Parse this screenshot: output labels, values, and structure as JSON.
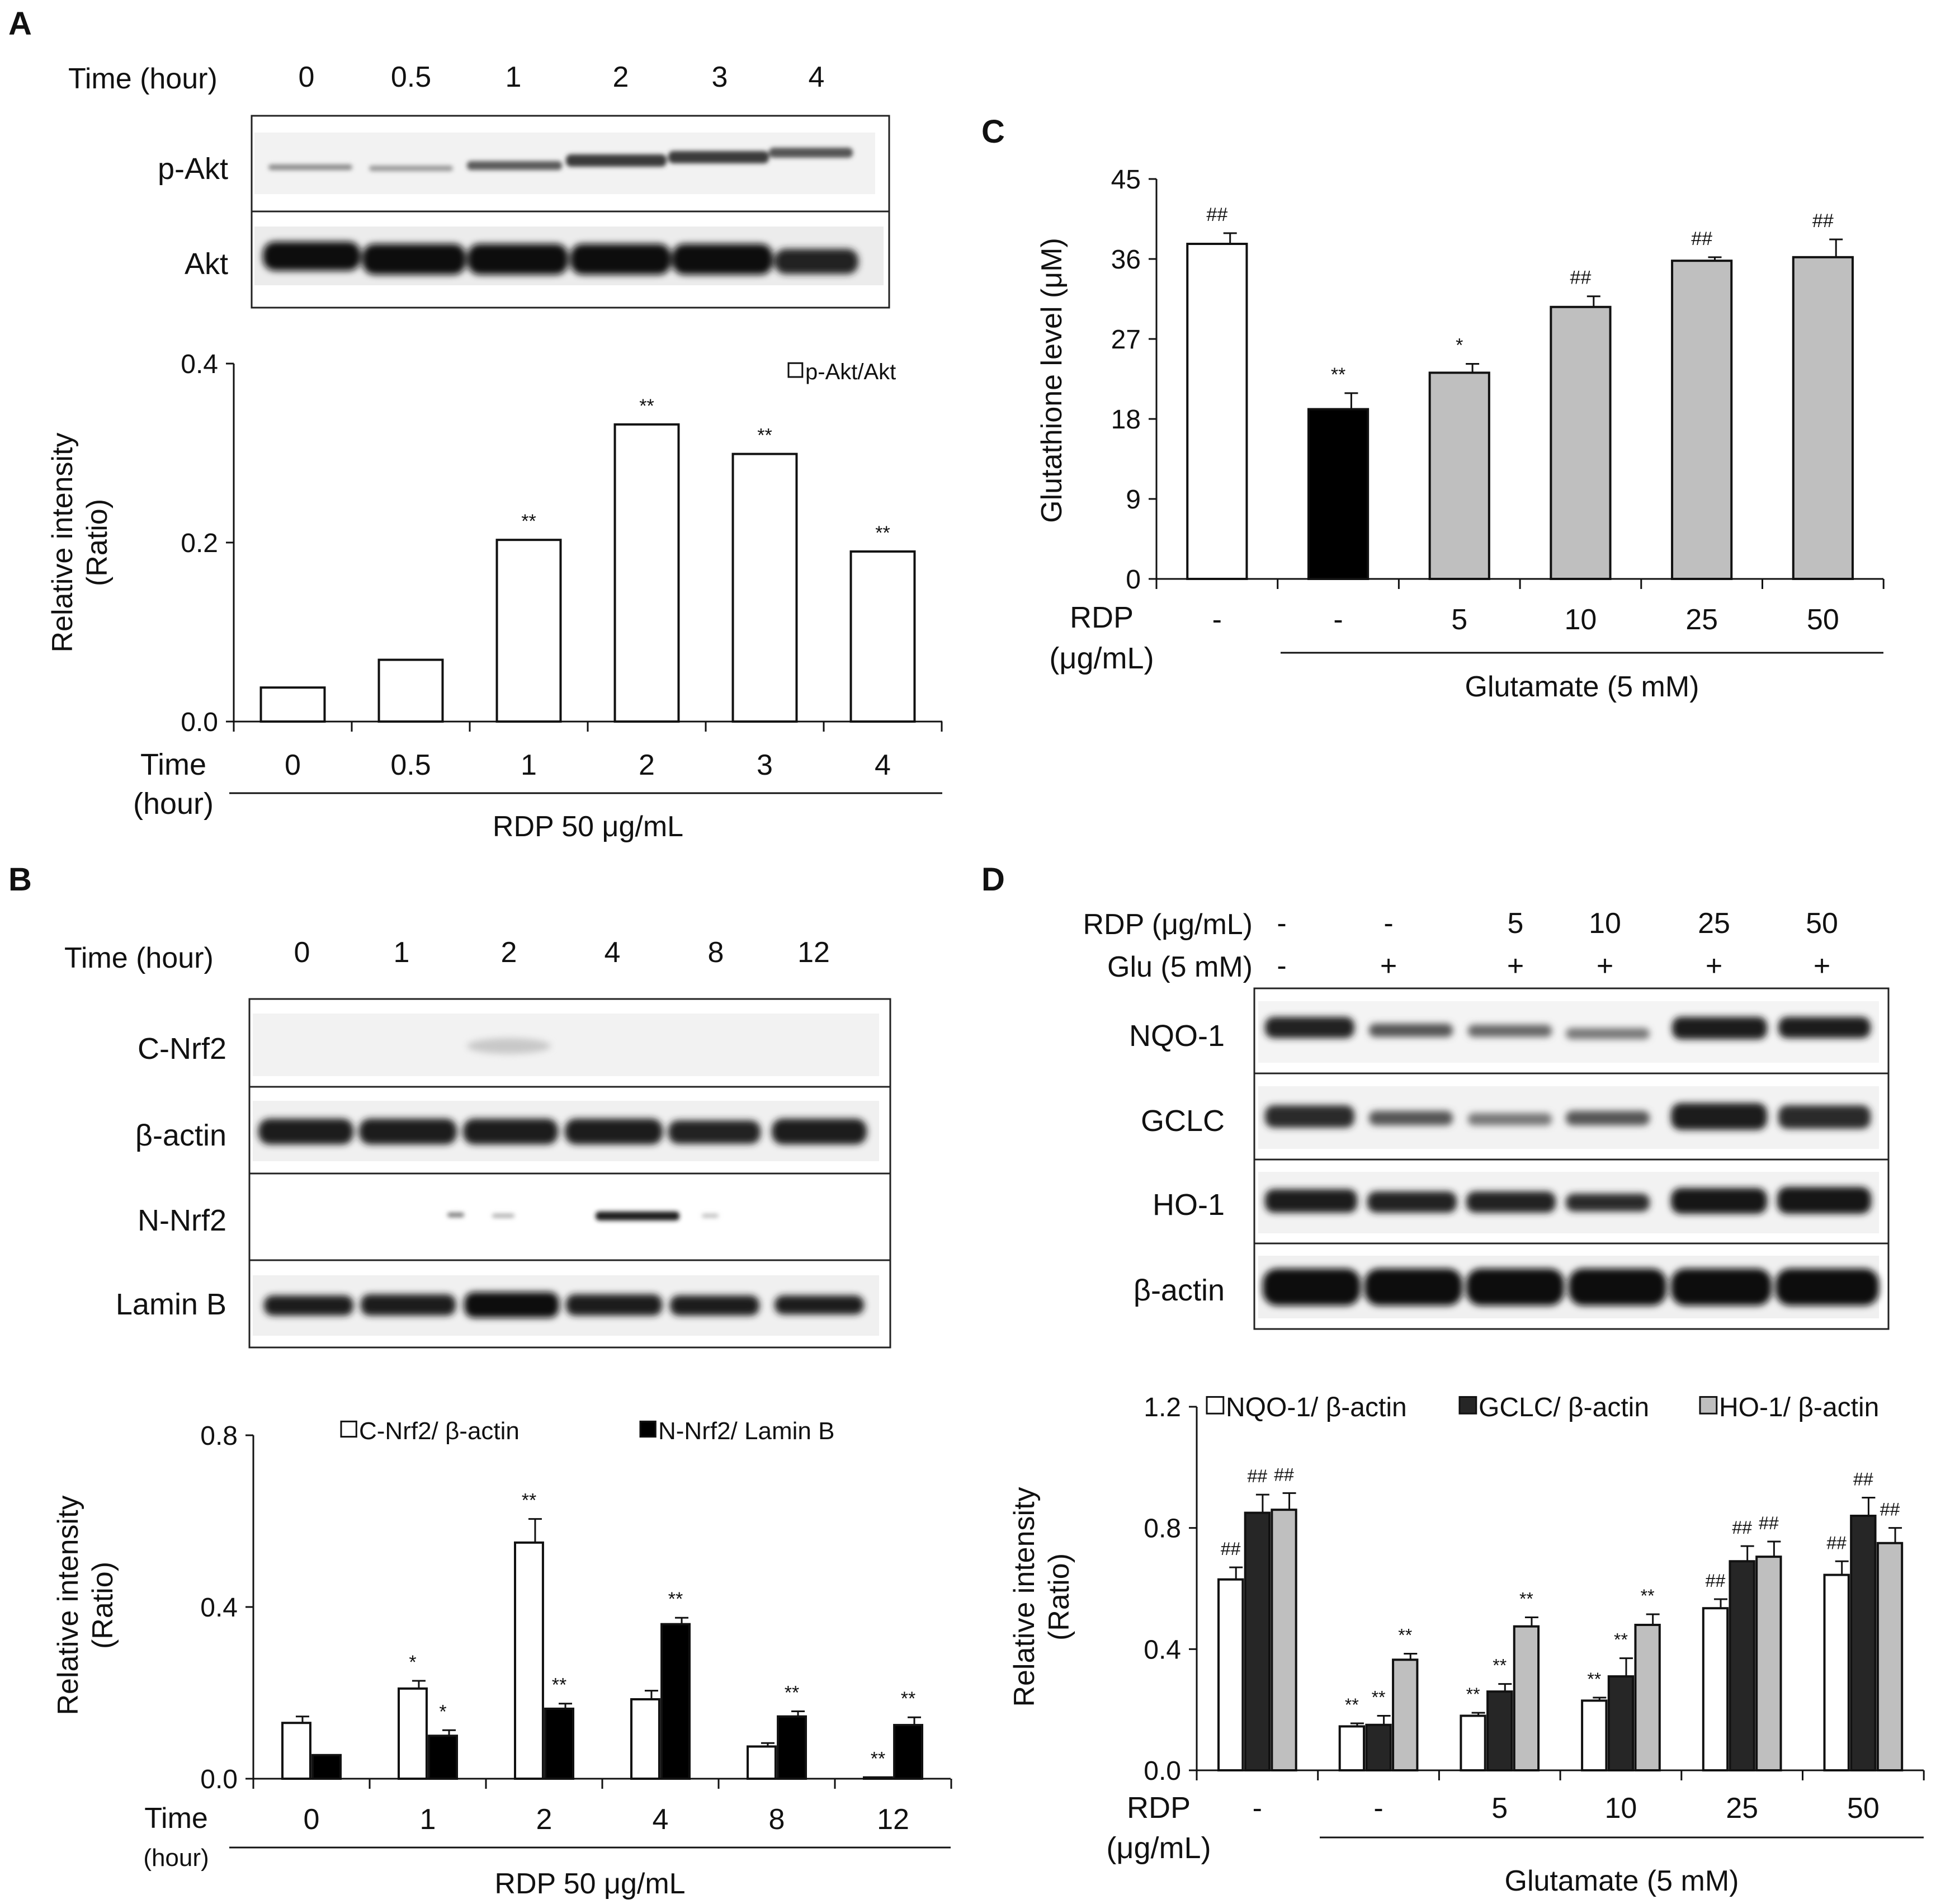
{
  "panel_letters": [
    "A",
    "B",
    "C",
    "D"
  ],
  "blots": {
    "A": {
      "header_label": "Time (hour)",
      "lanes": [
        "0",
        "0.5",
        "1",
        "2",
        "3",
        "4"
      ],
      "rows": [
        "p-Akt",
        "Akt"
      ]
    },
    "B": {
      "header_label": "Time (hour)",
      "lanes": [
        "0",
        "1",
        "2",
        "4",
        "8",
        "12"
      ],
      "rows": [
        "C-Nrf2",
        "β-actin",
        "N-Nrf2",
        "Lamin B"
      ]
    },
    "D": {
      "rdp_label": "RDP (μg/mL)",
      "glu_label": "Glu (5 mM)",
      "rdp_values": [
        "-",
        "-",
        "5",
        "10",
        "25",
        "50"
      ],
      "glu_values": [
        "-",
        "+",
        "+",
        "+",
        "+",
        "+"
      ],
      "rows": [
        "NQO-1",
        "GCLC",
        "HO-1",
        "β-actin"
      ]
    }
  },
  "chart_data": [
    {
      "panel": "A",
      "type": "bar",
      "ylabel": [
        "Relative intensity",
        "(Ratio)"
      ],
      "ylim": [
        0,
        0.4
      ],
      "ticks": [
        "0.0",
        "0.2",
        "0.4"
      ],
      "x_title": [
        "Time",
        "(hour)"
      ],
      "categories": [
        "0",
        "0.5",
        "1",
        "2",
        "3",
        "4"
      ],
      "series": [
        {
          "name": "p-Akt/Akt",
          "color": "#ffffff",
          "values": [
            0.038,
            0.069,
            0.203,
            0.332,
            0.299,
            0.19
          ],
          "errors": [
            0,
            0,
            0,
            0,
            0,
            0
          ],
          "marks": [
            "",
            "",
            "**",
            "**",
            "**",
            "**"
          ]
        }
      ],
      "group_label": "RDP 50 μg/mL"
    },
    {
      "panel": "B",
      "type": "bar",
      "ylabel": [
        "Relative intensity",
        "(Ratio)"
      ],
      "ylim": [
        0,
        0.8
      ],
      "ticks": [
        "0.0",
        "0.4",
        "0.8"
      ],
      "x_title": [
        "Time",
        "(hour)"
      ],
      "categories": [
        "0",
        "1",
        "2",
        "4",
        "8",
        "12"
      ],
      "series": [
        {
          "name": "C-Nrf2/ β-actin",
          "color": "#ffffff",
          "values": [
            0.13,
            0.21,
            0.55,
            0.185,
            0.075,
            0.003
          ],
          "errors": [
            0.015,
            0.018,
            0.055,
            0.02,
            0.008,
            0
          ],
          "marks": [
            "",
            "*",
            "**",
            "",
            "",
            "**"
          ]
        },
        {
          "name": "N-Nrf2/ Lamin B",
          "color": "#000000",
          "values": [
            0.055,
            0.1,
            0.163,
            0.36,
            0.145,
            0.125
          ],
          "errors": [
            0,
            0.013,
            0.012,
            0.015,
            0.012,
            0.018
          ],
          "marks": [
            "",
            "*",
            "**",
            "**",
            "**",
            "**"
          ]
        }
      ],
      "group_label": "RDP 50 μg/mL"
    },
    {
      "panel": "C",
      "type": "bar",
      "ylabel": [
        "Glutathione  level  (μM)"
      ],
      "ylim": [
        0,
        45
      ],
      "ticks": [
        "0",
        "9",
        "18",
        "27",
        "36",
        "45"
      ],
      "x_title": [
        "RDP",
        "(μg/mL)"
      ],
      "categories": [
        "-",
        "-",
        "5",
        "10",
        "25",
        "50"
      ],
      "series": [
        {
          "name": "Glutathione level",
          "colors": [
            "#ffffff",
            "#000000",
            "#bfbfbf",
            "#bfbfbf",
            "#bfbfbf",
            "#bfbfbf"
          ],
          "values": [
            37.7,
            19.1,
            23.2,
            30.6,
            35.8,
            36.2
          ],
          "errors": [
            1.2,
            1.8,
            1.0,
            1.2,
            0.4,
            2.0
          ],
          "marks": [
            "##",
            "**",
            "*",
            "##",
            "##",
            "##"
          ]
        }
      ],
      "group_label": "Glutamate (5 mM)"
    },
    {
      "panel": "D",
      "type": "bar",
      "ylabel": [
        "Relative intensity",
        "(Ratio)"
      ],
      "ylim": [
        0,
        1.2
      ],
      "ticks": [
        "0.0",
        "0.4",
        "0.8",
        "1.2"
      ],
      "x_title": [
        "RDP",
        "(μg/mL)"
      ],
      "categories": [
        "-",
        "-",
        "5",
        "10",
        "25",
        "50"
      ],
      "series": [
        {
          "name": "NQO-1/ β-actin",
          "color": "#ffffff",
          "values": [
            0.63,
            0.145,
            0.18,
            0.23,
            0.535,
            0.645
          ],
          "errors": [
            0.04,
            0.01,
            0.01,
            0.01,
            0.03,
            0.045
          ],
          "marks": [
            "##",
            "**",
            "**",
            "**",
            "##",
            "##"
          ]
        },
        {
          "name": "GCLC/ β-actin",
          "color": "#262626",
          "values": [
            0.85,
            0.15,
            0.26,
            0.31,
            0.69,
            0.84
          ],
          "errors": [
            0.06,
            0.03,
            0.025,
            0.06,
            0.05,
            0.06
          ],
          "marks": [
            "##",
            "**",
            "**",
            "**",
            "##",
            "##"
          ]
        },
        {
          "name": "HO-1/ β-actin",
          "color": "#bfbfbf",
          "values": [
            0.86,
            0.365,
            0.475,
            0.48,
            0.705,
            0.75
          ],
          "errors": [
            0.055,
            0.02,
            0.03,
            0.035,
            0.05,
            0.05
          ],
          "marks": [
            "##",
            "**",
            "**",
            "**",
            "##",
            "##"
          ]
        }
      ],
      "group_label": "Glutamate (5 mM)"
    }
  ]
}
